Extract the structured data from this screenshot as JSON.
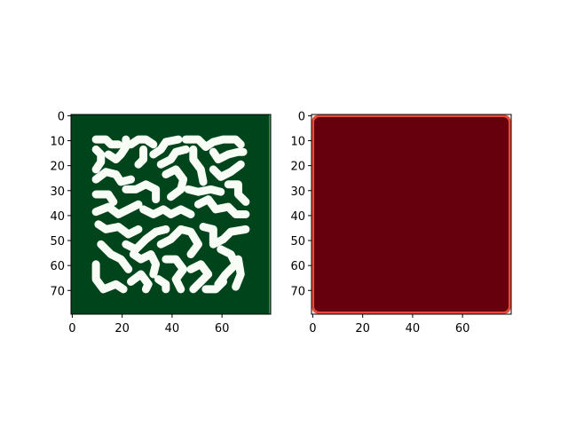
{
  "chart_data": [
    {
      "type": "heatmap",
      "title": "",
      "xlabel": "",
      "ylabel": "",
      "grid_size": [
        80,
        80
      ],
      "xlim": [
        0,
        79
      ],
      "ylim": [
        79,
        0
      ],
      "xticks": [
        0,
        20,
        40,
        60
      ],
      "yticks": [
        0,
        10,
        20,
        30,
        40,
        50,
        60,
        70
      ],
      "colormap": "Greens",
      "colors": {
        "low": "#f7fcf5",
        "high": "#00441b"
      },
      "description_of_field": "Turing-like labyrinth pattern: pale green maze stripes on dark green background inside approx x 8..70, y 8..70",
      "pattern": {
        "background": "high",
        "stripes": "low",
        "pattern_bounds": {
          "x": [
            8,
            71
          ],
          "y": [
            8,
            71
          ]
        }
      }
    },
    {
      "type": "heatmap",
      "title": "",
      "xlabel": "",
      "ylabel": "",
      "grid_size": [
        80,
        80
      ],
      "xlim": [
        0,
        79
      ],
      "ylim": [
        79,
        0
      ],
      "xticks": [
        0,
        20,
        40,
        60
      ],
      "yticks": [
        0,
        10,
        20,
        30,
        40,
        50,
        60,
        70
      ],
      "colormap": "Reds",
      "colors": {
        "low": "#fff5f0",
        "high": "#67000d",
        "edge": "#e0392b"
      },
      "description_of_field": "Uniform dark red field with a thin lighter red border ring and white outer edge"
    }
  ]
}
